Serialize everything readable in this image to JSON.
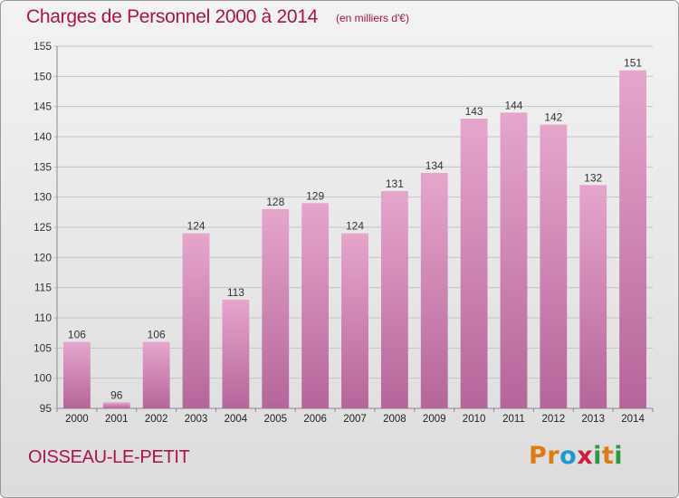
{
  "title": "Charges de Personnel 2000 à 2014",
  "unit_note": "(en milliers d'€)",
  "commune": "OISSEAU-LE-PETIT",
  "logo": {
    "text": "Proxiti",
    "letters": [
      "P",
      "r",
      "o",
      "x",
      "i",
      "t",
      "i"
    ],
    "colors": [
      "#e07a12",
      "#e07a12",
      "#1a9bd8",
      "#d11c3c",
      "#2c9a3c",
      "#e07a12",
      "#2c9a3c"
    ]
  },
  "colors": {
    "accent": "#b0104d",
    "bar_top": "#e6a6cc",
    "bar_bottom": "#b5659a"
  },
  "chart_data": {
    "type": "bar",
    "title": "Charges de Personnel 2000 à 2014",
    "subtitle": "(en milliers d'€)",
    "categories": [
      "2000",
      "2001",
      "2002",
      "2003",
      "2004",
      "2005",
      "2006",
      "2007",
      "2008",
      "2009",
      "2010",
      "2011",
      "2012",
      "2013",
      "2014"
    ],
    "values": [
      106,
      96,
      106,
      124,
      113,
      128,
      129,
      124,
      131,
      134,
      143,
      144,
      142,
      132,
      151
    ],
    "ylim": [
      95,
      155
    ],
    "yticks": [
      95,
      100,
      105,
      110,
      115,
      120,
      125,
      130,
      135,
      140,
      145,
      150,
      155
    ],
    "grid": true,
    "xlabel": "",
    "ylabel": ""
  }
}
